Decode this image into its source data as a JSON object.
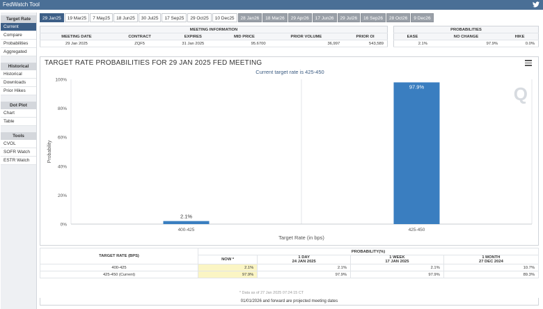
{
  "app": {
    "title": "FedWatch Tool",
    "twitter_icon": "twitter-icon"
  },
  "sidebar": {
    "sections": [
      {
        "title": "Target Rate",
        "items": [
          "Current",
          "Compare",
          "Probabilities",
          "Aggregated"
        ],
        "active": 0
      },
      {
        "title": "Historical",
        "items": [
          "Historical",
          "Downloads",
          "Prior Hikes"
        ]
      },
      {
        "title": "Dot Plot",
        "items": [
          "Chart",
          "Table"
        ]
      },
      {
        "title": "Tools",
        "items": [
          "CVOL",
          "SOFR Watch",
          "ESTR Watch"
        ]
      }
    ]
  },
  "tabs": [
    {
      "label": "29 Jan25",
      "state": "active"
    },
    {
      "label": "19 Mar25",
      "state": "normal"
    },
    {
      "label": "7 May25",
      "state": "normal"
    },
    {
      "label": "18 Jun25",
      "state": "normal"
    },
    {
      "label": "30 Jul25",
      "state": "normal"
    },
    {
      "label": "17 Sep25",
      "state": "normal"
    },
    {
      "label": "29 Oct25",
      "state": "normal"
    },
    {
      "label": "10 Dec25",
      "state": "normal"
    },
    {
      "label": "28 Jan26",
      "state": "projected"
    },
    {
      "label": "18 Mar26",
      "state": "projected"
    },
    {
      "label": "29 Apr26",
      "state": "projected"
    },
    {
      "label": "17 Jun26",
      "state": "projected"
    },
    {
      "label": "29 Jul26",
      "state": "projected"
    },
    {
      "label": "16 Sep26",
      "state": "projected"
    },
    {
      "label": "28 Oct26",
      "state": "projected"
    },
    {
      "label": "9 Dec26",
      "state": "projected"
    }
  ],
  "meeting_info": {
    "section_title": "MEETING INFORMATION",
    "headers": [
      "MEETING DATE",
      "CONTRACT",
      "EXPIRES",
      "MID PRICE",
      "PRIOR VOLUME",
      "PRIOR OI"
    ],
    "row": [
      "29 Jan 2025",
      "ZQF5",
      "31 Jan 2025",
      "95.6700",
      "36,997",
      "543,589"
    ]
  },
  "probabilities": {
    "section_title": "PROBABILITIES",
    "headers": [
      "EASE",
      "NO CHANGE",
      "HIKE"
    ],
    "row": [
      "2.1%",
      "97.9%",
      "0.0%"
    ]
  },
  "chart": {
    "title": "TARGET RATE PROBABILITIES FOR 29 JAN 2025 FED MEETING",
    "subtitle": "Current target rate is 425-450",
    "menu_icon": "hamburger-menu-icon",
    "watermark": "Q",
    "accent": "#3a7ec0"
  },
  "chart_data": {
    "type": "bar",
    "title": "TARGET RATE PROBABILITIES FOR 29 JAN 2025 FED MEETING",
    "subtitle": "Current target rate is 425-450",
    "xlabel": "Target Rate (in bps)",
    "ylabel": "Probability",
    "categories": [
      "400-425",
      "425-450"
    ],
    "values": [
      2.1,
      97.9
    ],
    "data_labels": [
      "2.1%",
      "97.9%"
    ],
    "yticks": [
      "0%",
      "20%",
      "40%",
      "60%",
      "80%",
      "100%"
    ],
    "ylim": [
      0,
      100
    ],
    "grid": "vertical-category-lines"
  },
  "prob_table": {
    "left_header": "TARGET RATE (BPS)",
    "group_header": "PROBABILITY(%)",
    "cols": [
      {
        "line1": "NOW *",
        "line2": ""
      },
      {
        "line1": "1 DAY",
        "line2": "24 JAN 2025"
      },
      {
        "line1": "1 WEEK",
        "line2": "17 JAN 2025"
      },
      {
        "line1": "1 MONTH",
        "line2": "27 DEC 2024"
      }
    ],
    "rows": [
      {
        "label": "400-425",
        "values": [
          "2.1%",
          "2.1%",
          "2.1%",
          "10.7%"
        ]
      },
      {
        "label": "425-450 (Current)",
        "values": [
          "97.9%",
          "97.9%",
          "97.9%",
          "89.3%"
        ]
      }
    ],
    "note": "* Data as of 27 Jan 2025 07:24:15 CT",
    "footer": "01/01/2026 and forward are projected meeting dates"
  }
}
